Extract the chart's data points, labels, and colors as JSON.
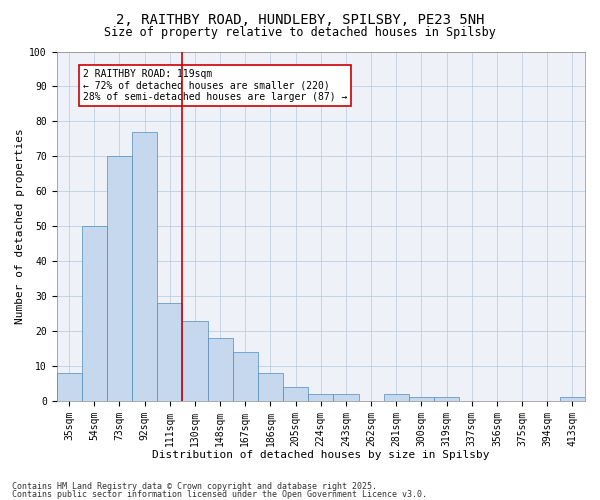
{
  "title1": "2, RAITHBY ROAD, HUNDLEBY, SPILSBY, PE23 5NH",
  "title2": "Size of property relative to detached houses in Spilsby",
  "xlabel": "Distribution of detached houses by size in Spilsby",
  "ylabel": "Number of detached properties",
  "categories": [
    "35sqm",
    "54sqm",
    "73sqm",
    "92sqm",
    "111sqm",
    "130sqm",
    "148sqm",
    "167sqm",
    "186sqm",
    "205sqm",
    "224sqm",
    "243sqm",
    "262sqm",
    "281sqm",
    "300sqm",
    "319sqm",
    "337sqm",
    "356sqm",
    "375sqm",
    "394sqm",
    "413sqm"
  ],
  "values": [
    8,
    50,
    70,
    77,
    28,
    23,
    18,
    14,
    8,
    4,
    2,
    2,
    0,
    2,
    1,
    1,
    0,
    0,
    0,
    0,
    1
  ],
  "bar_color": "#c5d8ed",
  "bar_edge_color": "#4e8cbe",
  "red_line_x": 4.5,
  "annotation_text": "2 RAITHBY ROAD: 119sqm\n← 72% of detached houses are smaller (220)\n28% of semi-detached houses are larger (87) →",
  "annotation_box_color": "#ffffff",
  "annotation_box_edge": "#cc0000",
  "red_line_color": "#cc0000",
  "footer1": "Contains HM Land Registry data © Crown copyright and database right 2025.",
  "footer2": "Contains public sector information licensed under the Open Government Licence v3.0.",
  "bg_color": "#eef2f8",
  "ylim": [
    0,
    100
  ],
  "yticks": [
    0,
    10,
    20,
    30,
    40,
    50,
    60,
    70,
    80,
    90,
    100
  ],
  "title_fontsize": 10,
  "subtitle_fontsize": 8.5,
  "axis_label_fontsize": 8,
  "tick_fontsize": 7,
  "annotation_fontsize": 7,
  "footer_fontsize": 6
}
